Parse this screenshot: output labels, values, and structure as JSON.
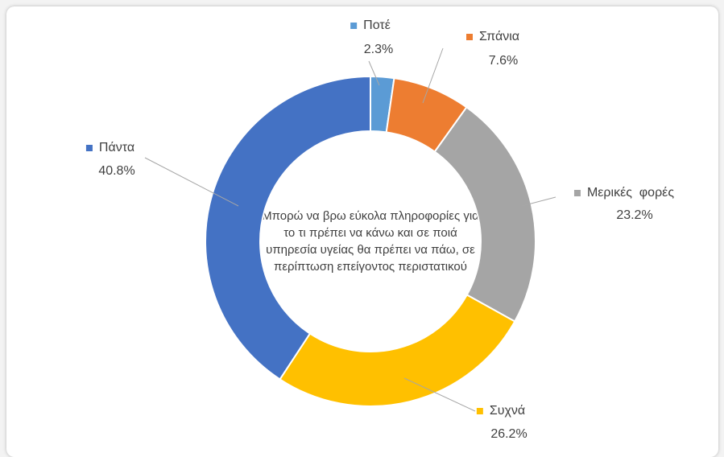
{
  "chart_data": {
    "type": "pie",
    "donut": true,
    "title": "Μπορώ να βρω εύκολα πληροφορίες για το τι πρέπει να κάνω και σε ποιά υπηρεσία υγείας θα πρέπει να πάω, σε περίπτωση επείγοντος περιστατικού",
    "categories": [
      "Ποτέ",
      "Σπάνια",
      "Μερικές  φορές",
      "Συχνά",
      "Πάντα"
    ],
    "values": [
      2.3,
      7.6,
      23.2,
      26.2,
      40.8
    ],
    "value_labels": [
      "2.3%",
      "7.6%",
      "23.2%",
      "26.2%",
      "40.8%"
    ],
    "colors": [
      "#5b9bd5",
      "#ed7d31",
      "#a5a5a5",
      "#ffc000",
      "#4472c4"
    ]
  }
}
